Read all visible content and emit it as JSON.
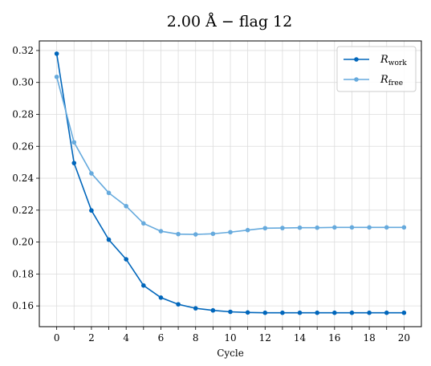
{
  "chart_data": {
    "type": "line",
    "title": "2.00 Å  −  flag 12",
    "xlabel": "Cycle",
    "ylabel": "",
    "xlim": [
      -1,
      21
    ],
    "ylim": [
      0.147,
      0.326
    ],
    "xticks": [
      0,
      1,
      2,
      3,
      4,
      5,
      6,
      7,
      8,
      9,
      10,
      11,
      12,
      13,
      14,
      15,
      16,
      17,
      18,
      19,
      20
    ],
    "xtick_labels": [
      "0",
      "",
      "2",
      "",
      "4",
      "",
      "6",
      "",
      "8",
      "",
      "10",
      "",
      "12",
      "",
      "14",
      "",
      "16",
      "",
      "18",
      "",
      "20"
    ],
    "yticks": [
      0.16,
      0.18,
      0.2,
      0.22,
      0.24,
      0.26,
      0.28,
      0.3,
      0.32
    ],
    "ytick_labels": [
      "0.16",
      "0.18",
      "0.20",
      "0.22",
      "0.24",
      "0.26",
      "0.28",
      "0.30",
      "0.32"
    ],
    "grid": true,
    "legend_position": "top-right",
    "x": [
      0,
      1,
      2,
      3,
      4,
      5,
      6,
      7,
      8,
      9,
      10,
      11,
      12,
      13,
      14,
      15,
      16,
      17,
      18,
      19,
      20
    ],
    "series": [
      {
        "name": "R",
        "name_sub": "work",
        "color": "#0066bb",
        "values": [
          0.318,
          0.2495,
          0.2198,
          0.2015,
          0.1892,
          0.1728,
          0.1652,
          0.161,
          0.1585,
          0.1572,
          0.1563,
          0.1559,
          0.1557,
          0.1557,
          0.1557,
          0.1557,
          0.1557,
          0.1557,
          0.1557,
          0.1557,
          0.1557
        ]
      },
      {
        "name": "R",
        "name_sub": "free",
        "color": "#66aadd",
        "values": [
          0.3035,
          0.2625,
          0.243,
          0.2308,
          0.2225,
          0.2117,
          0.2068,
          0.205,
          0.2048,
          0.2052,
          0.2062,
          0.2075,
          0.2087,
          0.2088,
          0.209,
          0.209,
          0.2092,
          0.2092,
          0.2092,
          0.2092,
          0.2092
        ]
      }
    ]
  }
}
